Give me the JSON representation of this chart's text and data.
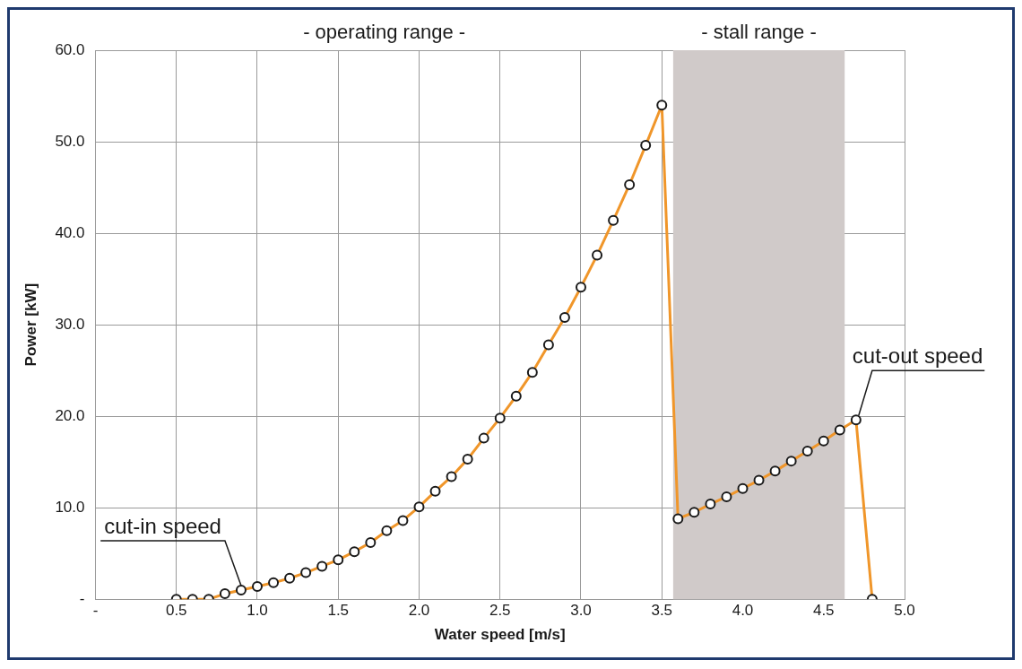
{
  "chart_data": {
    "type": "line",
    "xlabel": "Water speed [m/s]",
    "ylabel": "Power [kW]",
    "x": [
      0.5,
      0.6,
      0.7,
      0.8,
      0.9,
      1.0,
      1.1,
      1.2,
      1.3,
      1.4,
      1.5,
      1.6,
      1.7,
      1.8,
      1.9,
      2.0,
      2.1,
      2.2,
      2.3,
      2.4,
      2.5,
      2.6,
      2.7,
      2.8,
      2.9,
      3.0,
      3.1,
      3.2,
      3.3,
      3.4,
      3.5,
      3.6,
      3.7,
      3.8,
      3.9,
      4.0,
      4.1,
      4.2,
      4.3,
      4.4,
      4.5,
      4.6,
      4.7,
      4.8
    ],
    "series": [
      {
        "color": "#f0962a",
        "values": [
          0,
          0,
          0,
          0.6,
          1.0,
          1.4,
          1.8,
          2.3,
          2.9,
          3.6,
          4.3,
          5.2,
          6.2,
          7.5,
          8.6,
          10.1,
          11.8,
          13.4,
          15.3,
          17.6,
          19.8,
          22.2,
          24.8,
          27.8,
          30.8,
          34.1,
          37.6,
          41.4,
          45.3,
          49.6,
          54.0,
          8.8,
          9.5,
          10.4,
          11.2,
          12.1,
          13.0,
          14.0,
          15.1,
          16.2,
          17.3,
          18.5,
          19.6,
          0
        ]
      }
    ],
    "xlim": [
      0,
      5
    ],
    "xticks": [
      {
        "value": 0,
        "label": "-"
      },
      0.5,
      {
        "value": 1,
        "label": "1.0"
      },
      1.5,
      {
        "value": 2,
        "label": "2.0"
      },
      2.5,
      {
        "value": 3,
        "label": "3.0"
      },
      3.5,
      {
        "value": 4,
        "label": "4.0"
      },
      4.5,
      {
        "value": 5,
        "label": "5.0"
      }
    ],
    "ylim": [
      0,
      60
    ],
    "yticks": [
      {
        "value": 0,
        "label": "-"
      },
      {
        "value": 10,
        "label": "10.0"
      },
      {
        "value": 20,
        "label": "20.0"
      },
      {
        "value": 30,
        "label": "30.0"
      },
      {
        "value": 40,
        "label": "40.0"
      },
      {
        "value": 50,
        "label": "50.0"
      },
      {
        "value": 60,
        "label": "60.0"
      }
    ],
    "bands": [
      {
        "axis": "x",
        "from": 3.57,
        "to": 4.63,
        "label": "- stall range -",
        "color": "#d0cac9"
      }
    ],
    "annotations": [
      "- operating range -",
      {
        "text": "cut-in speed",
        "x": 0.9,
        "y": 1.0
      },
      {
        "text": "cut-out speed",
        "x": 4.7,
        "y": 19.6
      }
    ],
    "grid": true,
    "marker": "circle",
    "line_style": "solid",
    "legend": false
  }
}
